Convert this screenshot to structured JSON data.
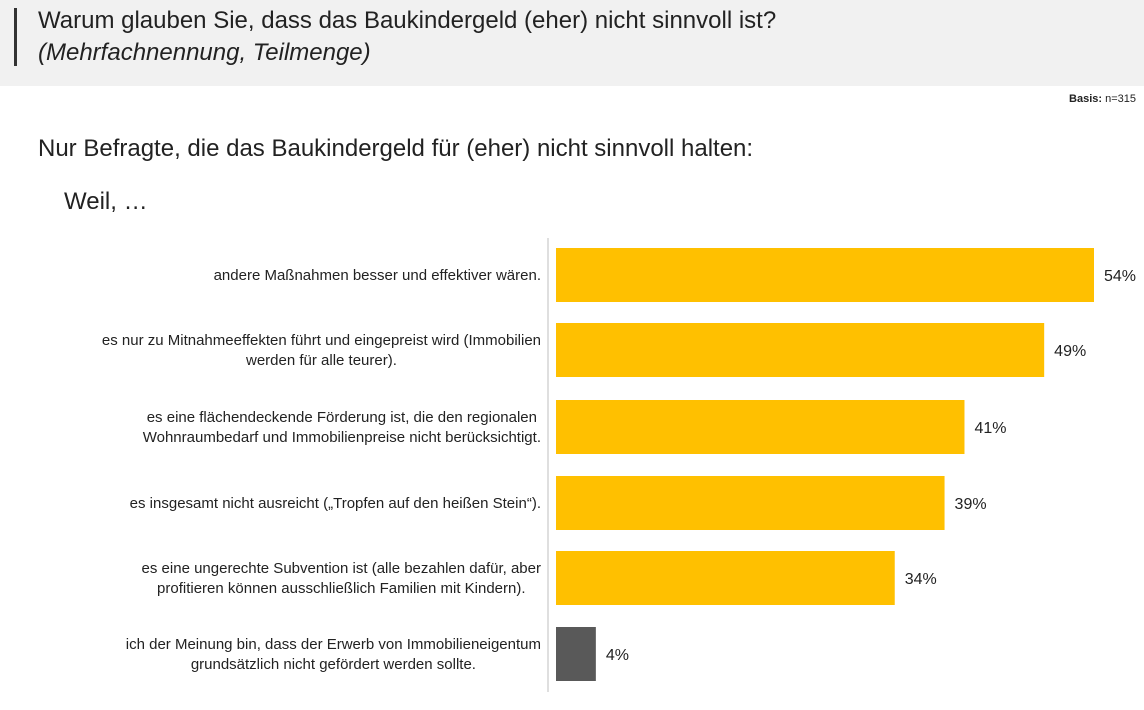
{
  "header": {
    "title": "Warum glauben Sie, dass das Baukindergeld (eher) nicht sinnvoll ist?",
    "subtitle": "(Mehrfachnennung, Teilmenge)"
  },
  "basis": {
    "label": "Basis:",
    "value": " n=315"
  },
  "intro": "Nur Befragte, die das Baukindergeld für (eher) nicht sinnvoll halten:",
  "weil": "Weil, …",
  "colors": {
    "bar": "#FFC000",
    "bar_highlight": "#595959",
    "axis": "#bfbfbf"
  },
  "chart_data": {
    "type": "bar",
    "orientation": "horizontal",
    "categories": [
      [
        "andere Maßnahmen besser und effektiver wären."
      ],
      [
        "es nur zu Mitnahmeeffekten führt und eingepreist wird (Immobilien",
        "werden für alle teurer)."
      ],
      [
        "es eine flächendeckende Förderung ist, die den regionalen",
        "Wohnraumbedarf und Immobilienpreise nicht berücksichtigt."
      ],
      [
        "es insgesamt nicht ausreicht („Tropfen auf den heißen Stein“)."
      ],
      [
        "es eine ungerechte Subvention ist (alle bezahlen dafür, aber",
        "profitieren können ausschließlich Familien mit Kindern)."
      ],
      [
        "ich der Meinung bin, dass der Erwerb von Immobilieneigentum",
        "grundsätzlich nicht gefördert werden sollte."
      ]
    ],
    "values": [
      54,
      49,
      41,
      39,
      34,
      4
    ],
    "value_labels": [
      "54%",
      "49%",
      "41%",
      "39%",
      "34%",
      "4%"
    ],
    "bar_colors": [
      "#FFC000",
      "#FFC000",
      "#FFC000",
      "#FFC000",
      "#FFC000",
      "#595959"
    ],
    "xlim": [
      0,
      54
    ],
    "legend": "none",
    "grid": false
  }
}
